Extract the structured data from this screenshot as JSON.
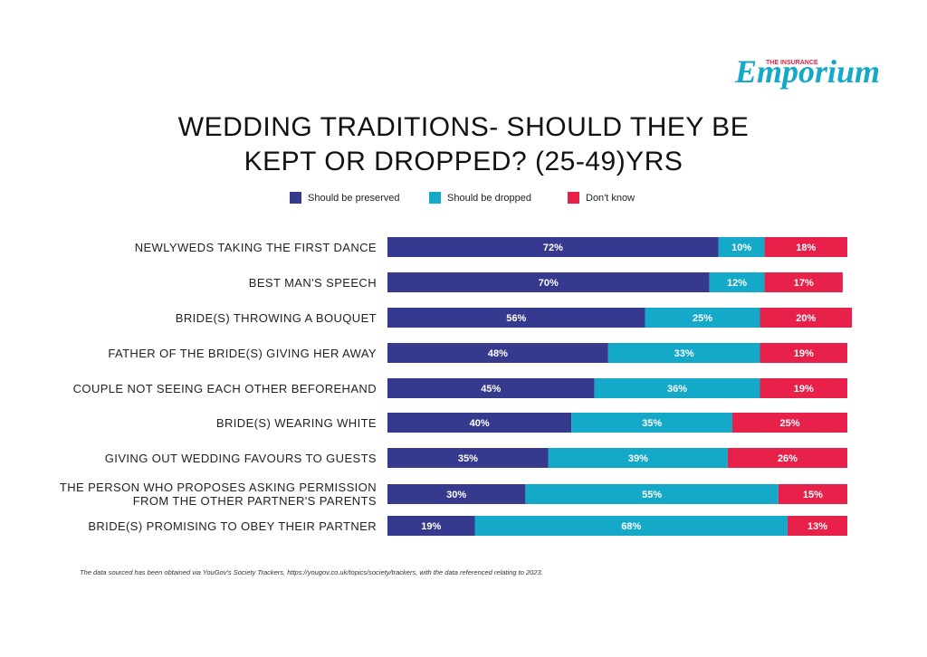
{
  "logo": {
    "top": "THE INSURANCE",
    "name": "Emporium"
  },
  "chart_data": {
    "type": "stacked_bar_horizontal",
    "title": "WEDDING TRADITIONS- SHOULD THEY BE KEPT OR DROPPED? (25-49)YRS",
    "categories": [
      "NEWLYWEDS TAKING THE FIRST DANCE",
      "BEST MAN'S SPEECH",
      "BRIDE(S) THROWING A BOUQUET",
      "FATHER OF THE BRIDE(S) GIVING HER AWAY",
      "COUPLE NOT SEEING EACH OTHER BEFOREHAND",
      "BRIDE(S) WEARING WHITE",
      "GIVING OUT WEDDING FAVOURS TO GUESTS",
      "THE PERSON WHO PROPOSES ASKING PERMISSION FROM THE OTHER PARTNER'S PARENTS",
      "BRIDE(S) PROMISING TO OBEY THEIR PARTNER"
    ],
    "series": [
      {
        "name": "Should be preserved",
        "color": "#353a8f",
        "values": [
          72,
          70,
          56,
          48,
          45,
          40,
          35,
          30,
          19
        ],
        "value_labels": [
          "72%",
          "70%",
          "56%",
          "48%",
          "45%",
          "40%",
          "35%",
          "30%",
          "19%"
        ]
      },
      {
        "name": "Should be dropped",
        "color": "#14a9c9",
        "values": [
          10,
          12,
          25,
          33,
          36,
          35,
          39,
          55,
          68
        ],
        "value_labels": [
          "10%",
          "12%",
          "25%",
          "33%",
          "36%",
          "35%",
          "39%",
          "55%",
          "68%"
        ]
      },
      {
        "name": "Don't know",
        "color": "#e8214a",
        "values": [
          18,
          17,
          20,
          19,
          19,
          25,
          26,
          15,
          13
        ],
        "value_labels": [
          "18%",
          "17%",
          "20%",
          "19%",
          "19%",
          "25%",
          "26%",
          "15%",
          "13%"
        ]
      }
    ],
    "xlim": [
      0,
      100
    ],
    "legend": "top",
    "footnote": "The data sourced has been obtained via YouGov's Society Trackers, https://yougov.co.uk/topics/society/trackers, with the data referenced relating to 2023."
  }
}
